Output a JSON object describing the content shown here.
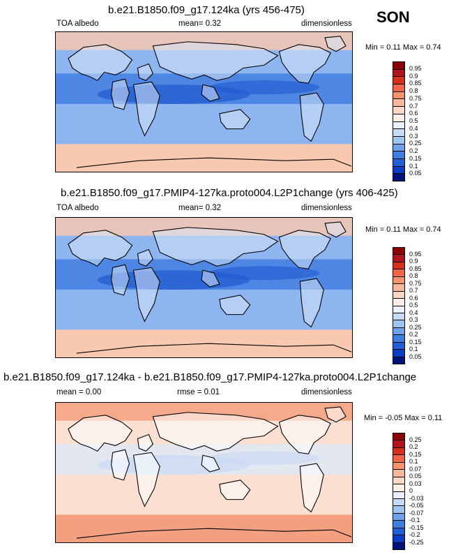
{
  "season": "SON",
  "panels": [
    {
      "title": "b.e21.B1850.f09_g17.124ka (yrs 456-475)",
      "left_label": "TOA albedo",
      "center_label": "mean=  0.32",
      "right_label": "dimensionless",
      "minmax": "Min =  0.11 Max =  0.74",
      "colorbar": {
        "labels": [
          "0.95",
          "0.9",
          "0.85",
          "0.8",
          "0.75",
          "0.7",
          "0.6",
          "0.5",
          "0.4",
          "0.3",
          "0.25",
          "0.2",
          "0.15",
          "0.1",
          "0.05"
        ],
        "colors": [
          "#8b0000",
          "#b2141b",
          "#d7301f",
          "#ef6548",
          "#f4946d",
          "#f7b89c",
          "#fbd8c6",
          "#fdeee6",
          "#e8f0fb",
          "#c6dbf5",
          "#9ec4f0",
          "#6fa2ea",
          "#3d7fe0",
          "#1f5fd6",
          "#0a3cc4",
          "#00127a"
        ]
      },
      "map_colors": {
        "ocean": "#8db6f0",
        "land": "#d7e4f7",
        "polar": "#f8c8b0",
        "tropics": "#3d7ae0",
        "deep": "#1f5ad0"
      }
    },
    {
      "title": "b.e21.B1850.f09_g17.PMIP4-127ka.proto004.L2P1change (yrs 406-425)",
      "left_label": "TOA albedo",
      "center_label": "mean=  0.32",
      "right_label": "dimensionless",
      "minmax": "Min =  0.11 Max =  0.74",
      "colorbar": {
        "labels": [
          "0.95",
          "0.9",
          "0.85",
          "0.8",
          "0.75",
          "0.7",
          "0.6",
          "0.5",
          "0.4",
          "0.3",
          "0.25",
          "0.2",
          "0.15",
          "0.1",
          "0.05"
        ],
        "colors": [
          "#8b0000",
          "#b2141b",
          "#d7301f",
          "#ef6548",
          "#f4946d",
          "#f7b89c",
          "#fbd8c6",
          "#fdeee6",
          "#e8f0fb",
          "#c6dbf5",
          "#9ec4f0",
          "#6fa2ea",
          "#3d7fe0",
          "#1f5fd6",
          "#0a3cc4",
          "#00127a"
        ]
      },
      "map_colors": {
        "ocean": "#8db6f0",
        "land": "#d7e4f7",
        "polar": "#f8c8b0",
        "tropics": "#3d7ae0",
        "deep": "#1f5ad0"
      }
    },
    {
      "title": "b.e21.B1850.f09_g17.124ka - b.e21.B1850.f09_g17.PMIP4-127ka.proto004.L2P1change",
      "left_label": "mean =  0.00",
      "center_label": "rmse =  0.01",
      "right_label": "dimensionless",
      "minmax": "Min =  -0.05 Max =  0.11",
      "colorbar": {
        "labels": [
          "0.25",
          "0.2",
          "0.15",
          "0.1",
          "0.07",
          "0.05",
          "0.03",
          "0",
          "-0.03",
          "-0.05",
          "-0.07",
          "-0.1",
          "-0.15",
          "-0.2",
          "-0.25"
        ],
        "colors": [
          "#8b0000",
          "#b2141b",
          "#d7301f",
          "#ef6548",
          "#f4946d",
          "#f7b89c",
          "#fbd8c6",
          "#fdeee6",
          "#e8f0fb",
          "#c6dbf5",
          "#9ec4f0",
          "#6fa2ea",
          "#3d7fe0",
          "#1f5fd6",
          "#0a3cc4",
          "#00127a"
        ]
      },
      "map_colors": {
        "ocean": "#fbe0d2",
        "land": "#ffffff",
        "polar": "#f3a080",
        "tropics": "#dde8f8",
        "deep": "#c9d9f4"
      }
    }
  ]
}
